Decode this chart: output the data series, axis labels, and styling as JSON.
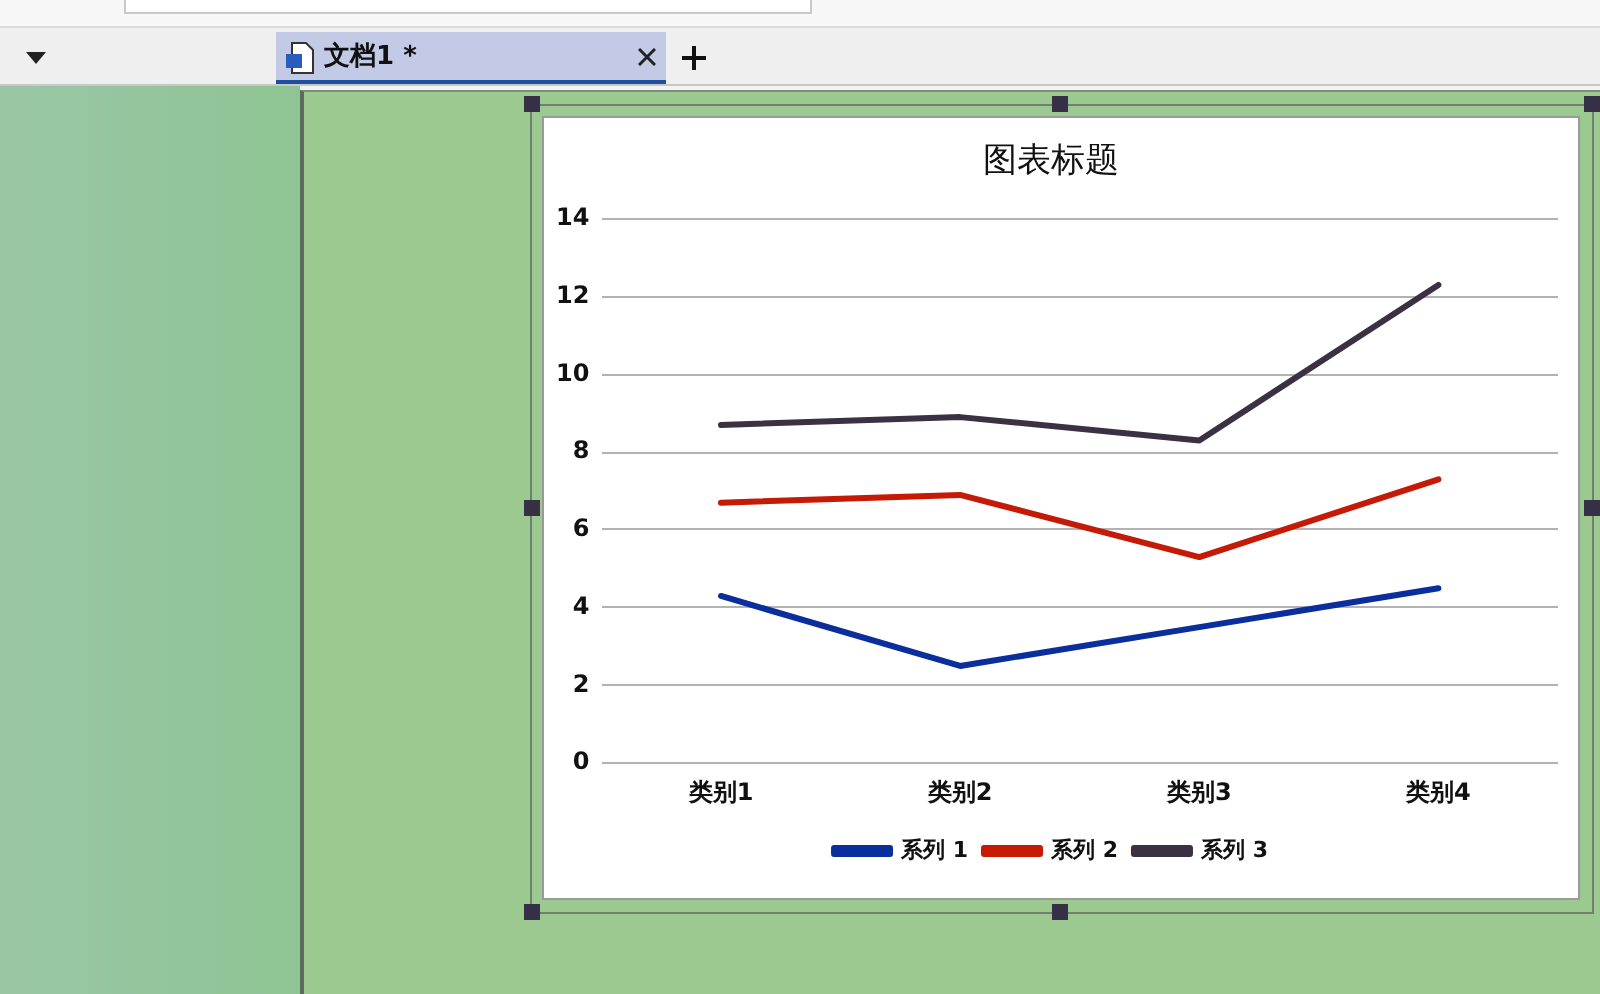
{
  "chart_data": {
    "type": "line",
    "title": "图表标题",
    "categories": [
      "类别1",
      "类别2",
      "类别3",
      "类别4"
    ],
    "series": [
      {
        "name": "系列 1",
        "color": "#0a2e9c",
        "values": [
          4.3,
          2.5,
          3.5,
          4.5
        ]
      },
      {
        "name": "系列 2",
        "color": "#c41a06",
        "values": [
          6.7,
          6.9,
          5.3,
          7.3
        ]
      },
      {
        "name": "系列 3",
        "color": "#3b3142",
        "values": [
          8.7,
          8.9,
          8.3,
          12.3
        ]
      }
    ],
    "ylim": [
      0,
      14
    ],
    "yticks": [
      0,
      2,
      4,
      6,
      8,
      10,
      12,
      14
    ],
    "grid": "y",
    "legend": "bottom",
    "annotations": [
      "文档1 *"
    ]
  }
}
